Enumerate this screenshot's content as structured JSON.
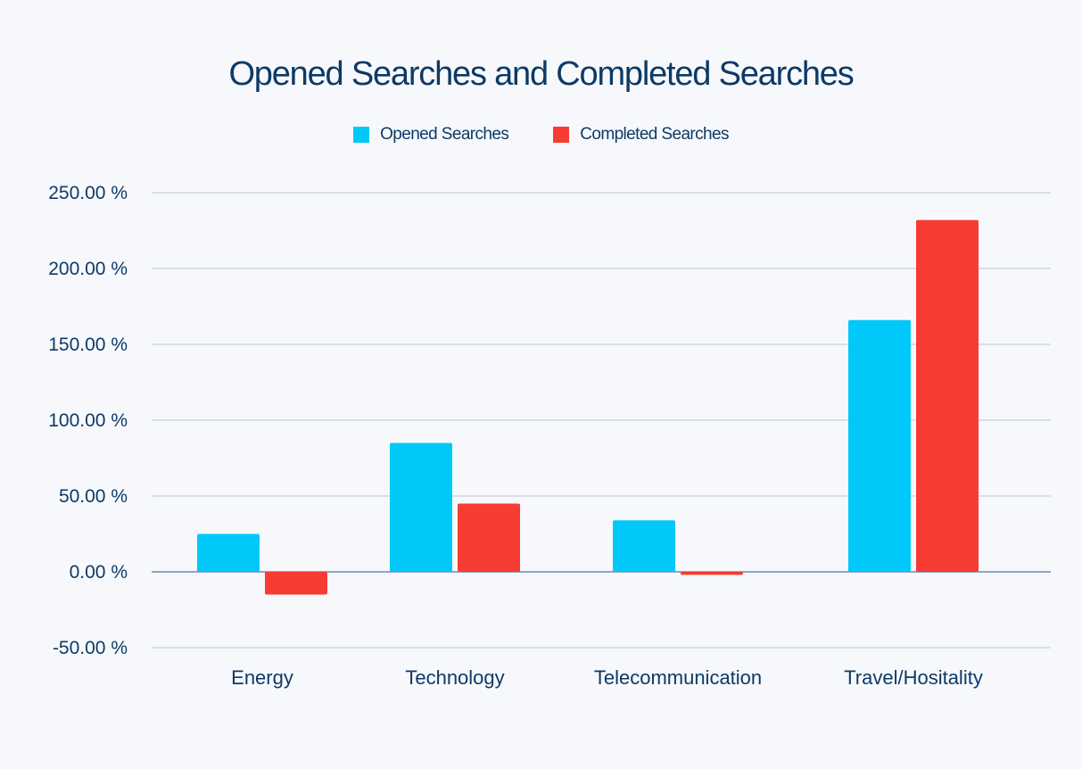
{
  "chart_data": {
    "type": "bar",
    "title": "Opened Searches and Completed Searches",
    "categories": [
      "Energy",
      "Technology",
      "Telecommunication",
      "Travel/Hositality"
    ],
    "series": [
      {
        "name": "Opened Searches",
        "color": "#00c8f8",
        "values": [
          25,
          85,
          34,
          166
        ]
      },
      {
        "name": "Completed Searches",
        "color": "#f63c33",
        "values": [
          -15,
          45,
          -2,
          232
        ]
      }
    ],
    "yticks": [
      "250.00 %",
      "200.00 %",
      "150.00 %",
      "100.00 %",
      "50.00 %",
      "0.00 %",
      "-50.00 %"
    ],
    "ytick_values": [
      250,
      200,
      150,
      100,
      50,
      0,
      -50
    ],
    "ylim": [
      -50,
      250
    ],
    "xlabel": "",
    "ylabel": "",
    "grid": true,
    "legend_position": "top-center"
  }
}
